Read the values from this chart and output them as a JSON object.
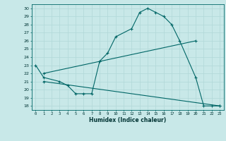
{
  "bg_color": "#c8e8e8",
  "line_color": "#006666",
  "grid_color": "#b0d8d8",
  "xlabel": "Humidex (Indice chaleur)",
  "xlim": [
    -0.5,
    23.5
  ],
  "ylim": [
    17.5,
    30.5
  ],
  "yticks": [
    18,
    19,
    20,
    21,
    22,
    23,
    24,
    25,
    26,
    27,
    28,
    29,
    30
  ],
  "xticks": [
    0,
    1,
    2,
    3,
    4,
    5,
    6,
    7,
    8,
    9,
    10,
    11,
    12,
    13,
    14,
    15,
    16,
    17,
    18,
    19,
    20,
    21,
    22,
    23
  ],
  "line1_x": [
    0,
    1,
    3,
    4,
    5,
    6,
    7,
    8,
    9,
    10,
    12,
    13,
    14,
    15,
    16,
    17,
    18,
    20,
    21,
    22,
    23
  ],
  "line1_y": [
    23,
    21.5,
    21,
    20.5,
    19.5,
    19.5,
    19.5,
    23.5,
    24.5,
    26.5,
    27.5,
    29.5,
    30,
    29.5,
    29,
    28,
    26,
    21.5,
    18,
    18,
    18
  ],
  "line2_x": [
    1,
    20
  ],
  "line2_y": [
    22,
    26
  ],
  "line3_x": [
    1,
    23
  ],
  "line3_y": [
    21,
    18
  ],
  "figsize": [
    3.2,
    2.0
  ],
  "dpi": 100
}
